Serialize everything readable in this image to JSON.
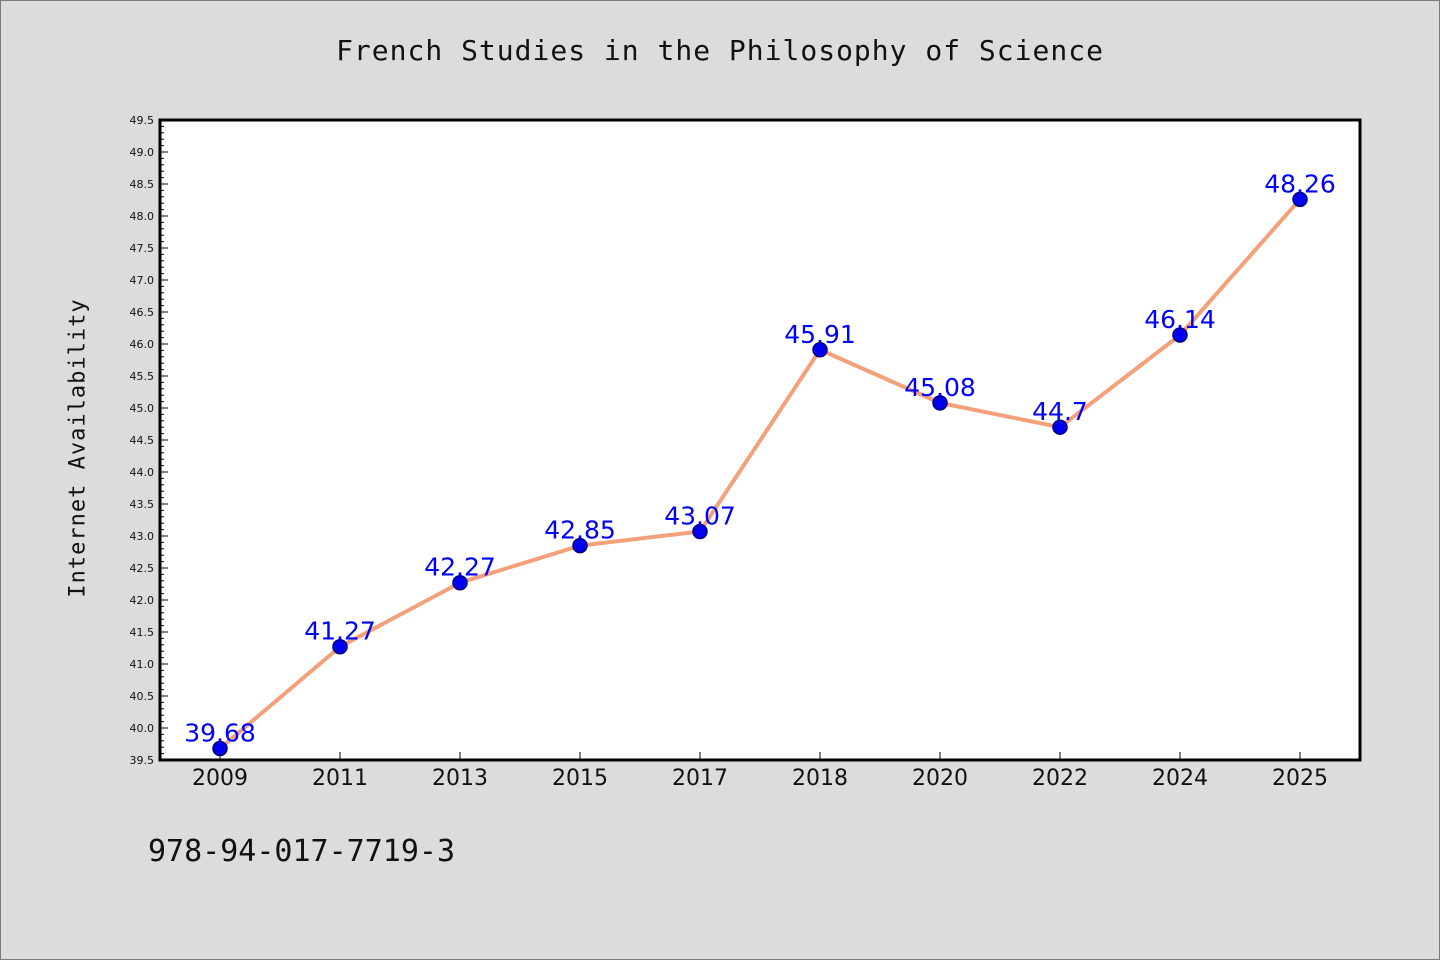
{
  "chart_data": {
    "type": "line",
    "title": "French Studies in the Philosophy of Science",
    "xlabel": "",
    "ylabel": "Internet Availability",
    "categories": [
      "2009",
      "2011",
      "2013",
      "2015",
      "2017",
      "2018",
      "2020",
      "2022",
      "2024",
      "2025"
    ],
    "series": [
      {
        "values": [
          39.68,
          41.27,
          42.27,
          42.85,
          43.07,
          45.91,
          45.08,
          44.7,
          46.14,
          48.26
        ],
        "data_labels": [
          "39.68",
          "41.27",
          "42.27",
          "42.85",
          "43.07",
          "45.91",
          "45.08",
          "44.7",
          "46.14",
          "48.26"
        ]
      }
    ],
    "ylim": [
      39.5,
      49.5
    ],
    "yticks": [
      "39.5",
      "40.0",
      "40.5",
      "41.0",
      "41.5",
      "42.0",
      "42.5",
      "43.0",
      "43.5",
      "44.0",
      "44.5",
      "45.0",
      "45.5",
      "46.0",
      "46.5",
      "47.0",
      "47.5",
      "48.0",
      "48.5",
      "49.0",
      "49.5"
    ],
    "grid": false,
    "colors": {
      "line": "#f4a07a",
      "marker_fill": "#0000ee",
      "marker_stroke": "#000080",
      "label": "#0000ff",
      "plot_bg": "#ffffff",
      "page_bg": "#dcdcdc"
    }
  },
  "footer": {
    "isbn": "978-94-017-7719-3"
  }
}
